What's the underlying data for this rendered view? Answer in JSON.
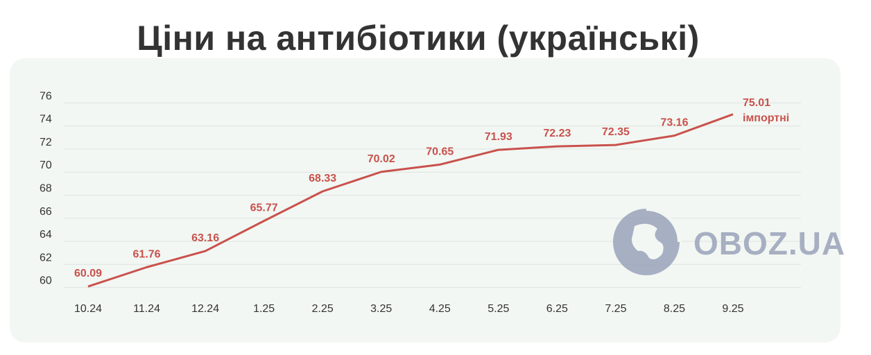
{
  "chart_data": {
    "type": "line",
    "title": "Ціни на антибіотики (українські)",
    "categories": [
      "10.24",
      "11.24",
      "12.24",
      "1.25",
      "2.25",
      "3.25",
      "4.25",
      "5.25",
      "6.25",
      "7.25",
      "8.25",
      "9.25"
    ],
    "series": [
      {
        "values": [
          60.09,
          61.76,
          63.16,
          65.77,
          68.33,
          70.02,
          70.65,
          71.93,
          72.23,
          72.35,
          73.16,
          75.01
        ]
      }
    ],
    "last_point_note": "імпортні",
    "yticks": [
      60,
      62,
      64,
      66,
      68,
      70,
      72,
      74,
      76
    ],
    "ylim": [
      59.5,
      76.5
    ],
    "grid": true,
    "line_color": "#c9514c"
  },
  "watermark": {
    "text": "OBOZ.UA",
    "icon": "globe-icon",
    "color": "#9aa3ba"
  }
}
